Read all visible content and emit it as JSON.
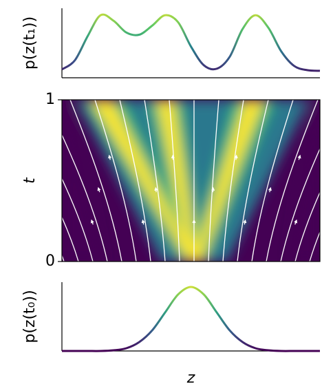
{
  "chart_data": [
    {
      "type": "line",
      "ylabel": "p(z(t₁))",
      "x": [
        0,
        0.05,
        0.1,
        0.15,
        0.2,
        0.25,
        0.3,
        0.35,
        0.4,
        0.45,
        0.5,
        0.55,
        0.6,
        0.65,
        0.7,
        0.75,
        0.8,
        0.85,
        0.9,
        0.95,
        1
      ],
      "values": [
        0.12,
        0.25,
        0.6,
        0.9,
        0.82,
        0.65,
        0.62,
        0.75,
        0.9,
        0.8,
        0.45,
        0.18,
        0.13,
        0.3,
        0.7,
        0.9,
        0.72,
        0.38,
        0.17,
        0.11,
        0.1
      ],
      "xlim": [
        0,
        1
      ],
      "ylim": [
        0,
        1
      ],
      "colormap": "viridis"
    },
    {
      "type": "heatmap",
      "ylabel": "t",
      "ylim": [
        0,
        1
      ],
      "yticks": [
        0,
        1
      ]
    },
    {
      "type": "line",
      "ylabel": "p(z(t₀))",
      "xlabel": "z",
      "x": [
        0,
        0.05,
        0.1,
        0.15,
        0.2,
        0.25,
        0.3,
        0.35,
        0.4,
        0.45,
        0.5,
        0.55,
        0.6,
        0.65,
        0.7,
        0.75,
        0.8,
        0.85,
        0.9,
        0.95,
        1
      ],
      "values": [
        0,
        0,
        0,
        0,
        0.01,
        0.04,
        0.13,
        0.3,
        0.56,
        0.82,
        0.93,
        0.82,
        0.56,
        0.3,
        0.13,
        0.04,
        0.01,
        0,
        0,
        0,
        0
      ],
      "xlim": [
        0,
        1
      ],
      "ylim": [
        0,
        1
      ],
      "colormap": "viridis"
    }
  ]
}
